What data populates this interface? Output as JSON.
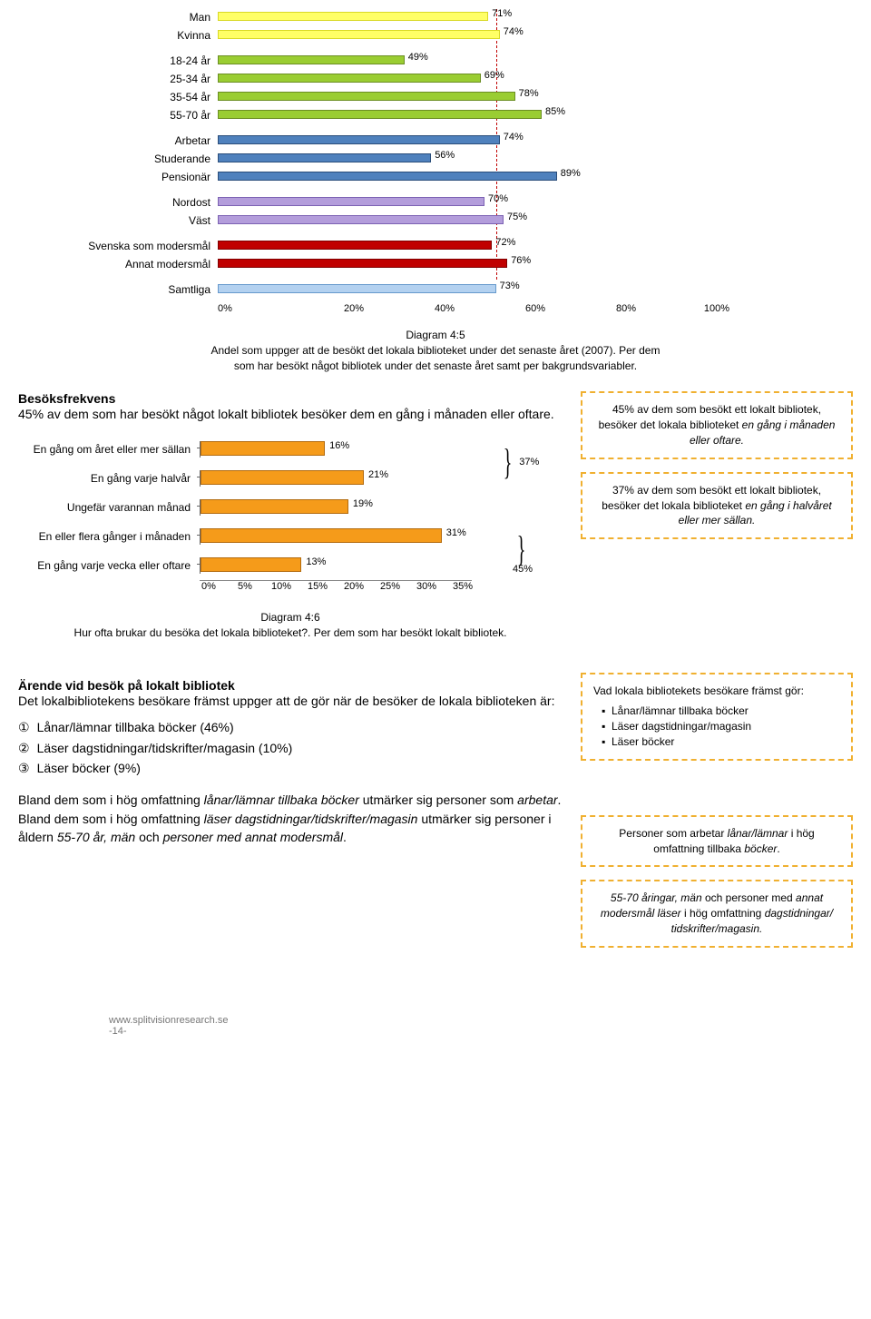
{
  "chart45": {
    "xmax": 100,
    "xtick_labels": [
      "0%",
      "20%",
      "40%",
      "60%",
      "80%",
      "100%"
    ],
    "refline": 73,
    "groups": [
      [
        {
          "label": "Man",
          "value": 71,
          "fill": "#ffff66",
          "border": "#d9d926"
        },
        {
          "label": "Kvinna",
          "value": 74,
          "fill": "#ffff66",
          "border": "#d9d926"
        }
      ],
      [
        {
          "label": "18-24 år",
          "value": 49,
          "fill": "#9acd32",
          "border": "#6b8e23"
        },
        {
          "label": "25-34 år",
          "value": 69,
          "fill": "#9acd32",
          "border": "#6b8e23"
        },
        {
          "label": "35-54 år",
          "value": 78,
          "fill": "#9acd32",
          "border": "#6b8e23"
        },
        {
          "label": "55-70 år",
          "value": 85,
          "fill": "#9acd32",
          "border": "#6b8e23"
        }
      ],
      [
        {
          "label": "Arbetar",
          "value": 74,
          "fill": "#4f81bd",
          "border": "#2a4d7a"
        },
        {
          "label": "Studerande",
          "value": 56,
          "fill": "#4f81bd",
          "border": "#2a4d7a"
        },
        {
          "label": "Pensionär",
          "value": 89,
          "fill": "#4f81bd",
          "border": "#2a4d7a"
        }
      ],
      [
        {
          "label": "Nordost",
          "value": 70,
          "fill": "#b39ddb",
          "border": "#7c62b3"
        },
        {
          "label": "Väst",
          "value": 75,
          "fill": "#b39ddb",
          "border": "#7c62b3"
        }
      ],
      [
        {
          "label": "Svenska som modersmål",
          "value": 72,
          "fill": "#c00000",
          "border": "#800000"
        },
        {
          "label": "Annat modersmål",
          "value": 76,
          "fill": "#c00000",
          "border": "#800000"
        }
      ],
      [
        {
          "label": "Samtliga",
          "value": 73,
          "fill": "#b3d1f0",
          "border": "#6699cc"
        }
      ]
    ]
  },
  "caption45": {
    "title": "Diagram 4:5",
    "text": "Andel som uppger att de besökt det lokala biblioteket under det senaste året (2007). Per dem som har besökt något bibliotek under det senaste året samt per bakgrundsvariabler."
  },
  "frekv": {
    "heading": "Besöksfrekvens",
    "intro": "45% av dem som har besökt något lokalt bibliotek besöker dem en gång i månaden eller oftare."
  },
  "chart46": {
    "xmax": 35,
    "xtick_labels": [
      "0%",
      "5%",
      "10%",
      "15%",
      "20%",
      "25%",
      "30%",
      "35%"
    ],
    "bar_fill": "#f59b1a",
    "bar_border": "#b36b0f",
    "rows": [
      {
        "label": "En gång om året eller mer sällan",
        "value": 16
      },
      {
        "label": "En gång varje halvår",
        "value": 21
      },
      {
        "label": "Ungefär varannan månad",
        "value": 19
      },
      {
        "label": "En eller flera gånger i månaden",
        "value": 31
      },
      {
        "label": "En gång varje vecka eller oftare",
        "value": 13
      }
    ],
    "brace_top": "37%",
    "brace_bottom": "45%"
  },
  "caption46": {
    "title": "Diagram 4:6",
    "text": "Hur ofta brukar du besöka det lokala biblioteket?. Per dem som har besökt lokalt bibliotek."
  },
  "callout1": "45% av dem som besökt ett lokalt bibliotek, besöker det lokala biblioteket <i>en gång i månaden eller oftare.</i>",
  "callout2": "37% av dem som besökt ett lokalt bibliotek, besöker det lokala biblioteket <i>en gång i halvåret eller mer sällan.</i>",
  "callout3": {
    "lead": "Vad lokala bibliotekets besökare främst gör:",
    "items": [
      "Lånar/lämnar tillbaka böcker",
      "Läser dagstidningar/magasin",
      "Läser böcker"
    ]
  },
  "callout4": "Personer som arbetar <i>lånar/lämnar</i> i hög omfattning tillbaka <i>böcker</i>.",
  "callout5": "<i>55-70 åringar, män</i> och personer med <i>annat modersmål läser</i> i hög omfattning <i>dagstidningar/ tidskrifter/magasin.</i>",
  "arende": {
    "heading": "Ärende vid besök på lokalt bibliotek",
    "intro": "Det lokalbibliotekens besökare främst uppger att de gör när de besöker de lokala biblioteken är:",
    "list": [
      "Lånar/lämnar tillbaka böcker (46%)",
      "Läser dagstidningar/tidskrifter/magasin (10%)",
      "Läser böcker (9%)"
    ],
    "p1": "Bland dem som i hög omfattning <i>lånar/lämnar tillbaka böcker</i> utmärker sig personer som <i>arbetar</i>. Bland dem som i hög omfattning <i>läser dagstidningar/tidskrifter/magasin</i> utmärker sig personer i åldern <i>55-70 år, män</i> och <i>personer med annat modersmål</i>."
  },
  "footer": {
    "url": "www.splitvisionresearch.se",
    "page": "-14-"
  }
}
